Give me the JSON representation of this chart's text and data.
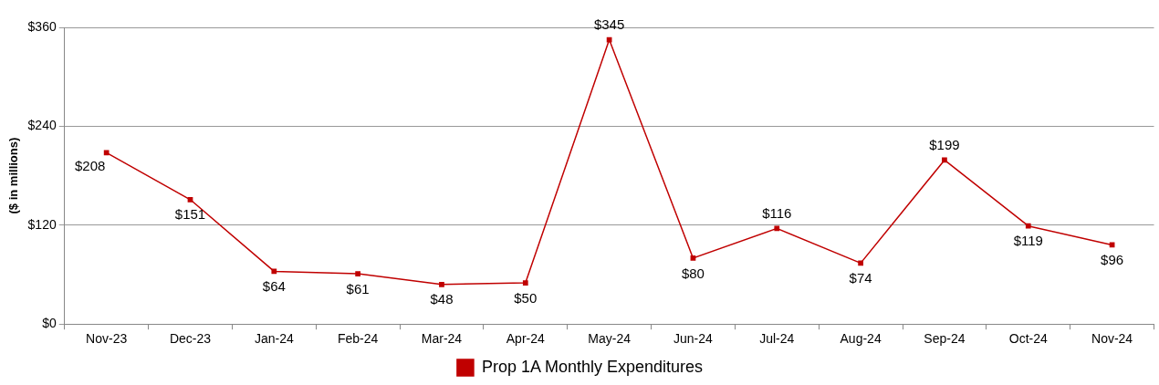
{
  "chart_data": {
    "type": "line",
    "ylabel": "($ in millions)",
    "categories": [
      "Nov-23",
      "Dec-23",
      "Jan-24",
      "Feb-24",
      "Mar-24",
      "Apr-24",
      "May-24",
      "Jun-24",
      "Jul-24",
      "Aug-24",
      "Sep-24",
      "Oct-24",
      "Nov-24"
    ],
    "series": [
      {
        "name": "Prop 1A Monthly Expenditures",
        "color": "#c00000",
        "values": [
          208,
          151,
          64,
          61,
          48,
          50,
          345,
          80,
          116,
          74,
          199,
          119,
          96
        ],
        "value_labels": [
          "$208",
          "$151",
          "$64",
          "$61",
          "$48",
          "$50",
          "$345",
          "$80",
          "$116",
          "$74",
          "$199",
          "$119",
          "$96"
        ]
      }
    ],
    "ylim": [
      0,
      360
    ],
    "yticks": [
      {
        "value": 0,
        "label": "$0"
      },
      {
        "value": 120,
        "label": "$120"
      },
      {
        "value": 240,
        "label": "$240"
      },
      {
        "value": 360,
        "label": "$360"
      }
    ],
    "grid": "y",
    "legend": "bottom",
    "marker": "square",
    "line_style": "solid"
  }
}
